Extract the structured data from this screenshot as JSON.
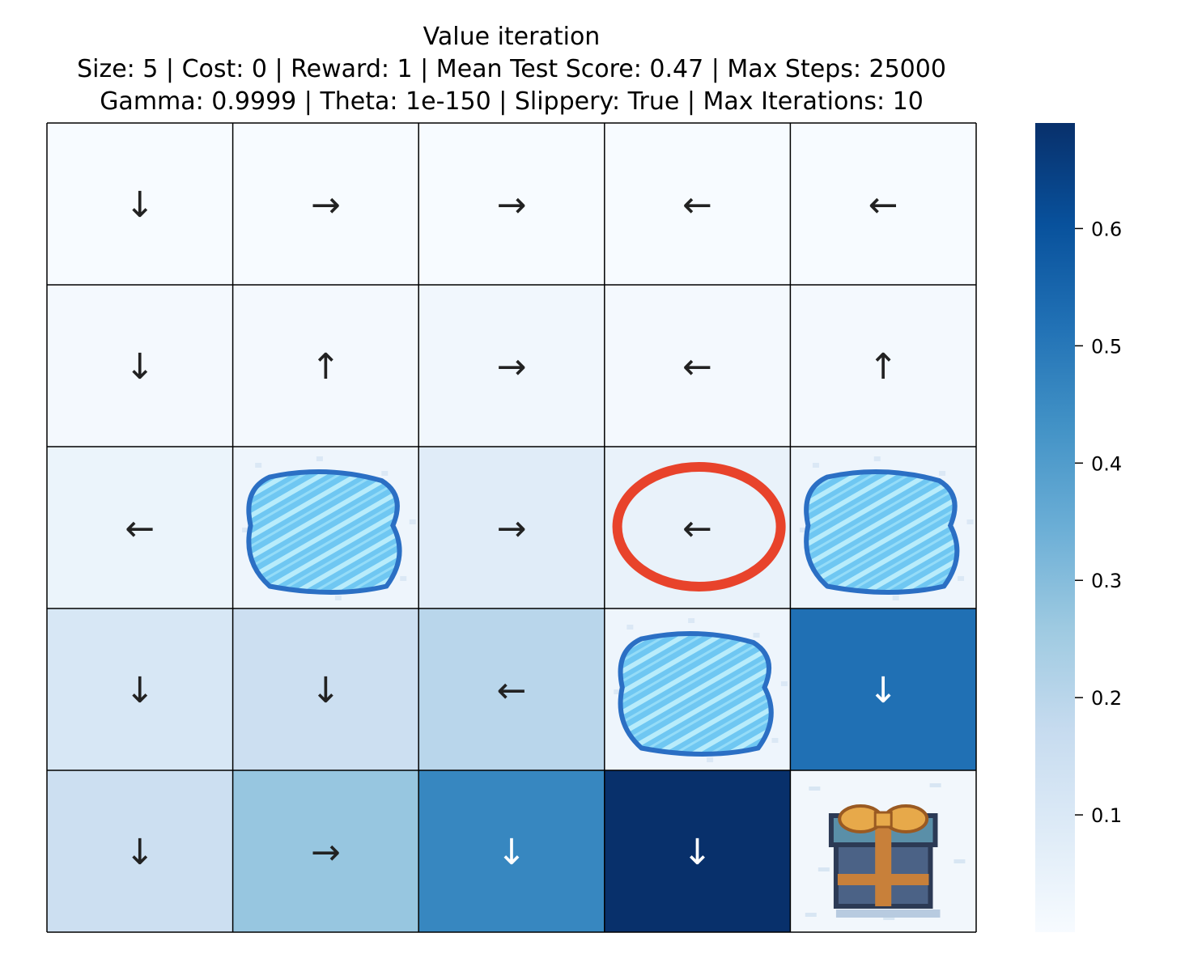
{
  "chart_data": {
    "type": "heatmap",
    "title_lines": [
      "Value iteration",
      "Size: 5 | Cost: 0 | Reward: 1 | Mean Test Score: 0.47 | Max Steps: 25000",
      "Gamma: 0.9999 | Theta: 1e-150 | Slippery: True | Max Iterations: 10"
    ],
    "rows": 5,
    "cols": 5,
    "colormap": "Blues",
    "vmin": 0.0,
    "vmax": 0.69,
    "colorbar_ticks": [
      0.1,
      0.2,
      0.3,
      0.4,
      0.5,
      0.6
    ],
    "colorbar_tick_labels": [
      "0.1",
      "0.2",
      "0.3",
      "0.4",
      "0.5",
      "0.6"
    ],
    "cells": [
      [
        {
          "kind": "arrow",
          "arrow": "↓",
          "value": 0.0
        },
        {
          "kind": "arrow",
          "arrow": "→",
          "value": 0.0
        },
        {
          "kind": "arrow",
          "arrow": "→",
          "value": 0.0
        },
        {
          "kind": "arrow",
          "arrow": "←",
          "value": 0.0
        },
        {
          "kind": "arrow",
          "arrow": "←",
          "value": 0.0
        }
      ],
      [
        {
          "kind": "arrow",
          "arrow": "↓",
          "value": 0.01
        },
        {
          "kind": "arrow",
          "arrow": "↑",
          "value": 0.01
        },
        {
          "kind": "arrow",
          "arrow": "→",
          "value": 0.02
        },
        {
          "kind": "arrow",
          "arrow": "←",
          "value": 0.01
        },
        {
          "kind": "arrow",
          "arrow": "↑",
          "value": 0.01
        }
      ],
      [
        {
          "kind": "arrow",
          "arrow": "←",
          "value": 0.04
        },
        {
          "kind": "hole",
          "value": 0.0
        },
        {
          "kind": "arrow",
          "arrow": "→",
          "value": 0.08
        },
        {
          "kind": "arrow",
          "arrow": "←",
          "value": 0.05,
          "highlight": true
        },
        {
          "kind": "hole",
          "value": 0.0
        }
      ],
      [
        {
          "kind": "arrow",
          "arrow": "↓",
          "value": 0.11
        },
        {
          "kind": "arrow",
          "arrow": "↓",
          "value": 0.15
        },
        {
          "kind": "arrow",
          "arrow": "←",
          "value": 0.2
        },
        {
          "kind": "hole",
          "value": 0.0
        },
        {
          "kind": "arrow",
          "arrow": "↓",
          "value": 0.52
        }
      ],
      [
        {
          "kind": "arrow",
          "arrow": "↓",
          "value": 0.15
        },
        {
          "kind": "arrow",
          "arrow": "→",
          "value": 0.27
        },
        {
          "kind": "arrow",
          "arrow": "↓",
          "value": 0.46
        },
        {
          "kind": "arrow",
          "arrow": "↓",
          "value": 0.69
        },
        {
          "kind": "goal",
          "value": 0.0
        }
      ]
    ],
    "colors": {
      "highlight_circle": "#e8432b",
      "grid_line": "#000000",
      "arrow_dark": "#222222",
      "arrow_light": "#ffffff"
    },
    "icons": {
      "hole": "frozen-lake-hole-icon",
      "goal": "gift-box-icon"
    }
  }
}
